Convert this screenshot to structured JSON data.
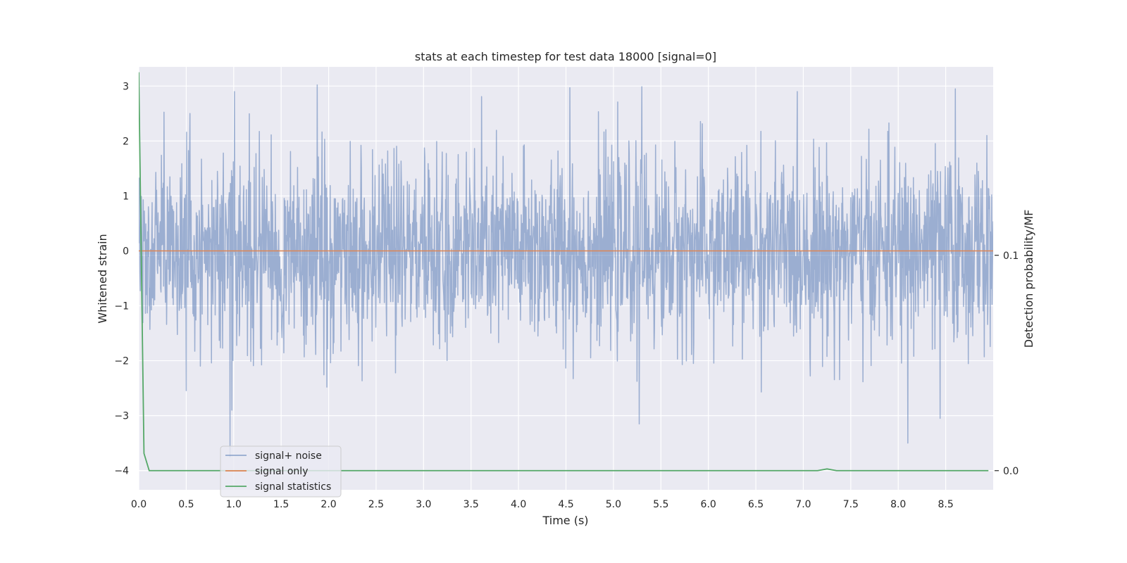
{
  "chart_data": {
    "type": "line",
    "title": "stats at each timestep for test data 18000 [signal=0]",
    "xlabel": "Time (s)",
    "ylabel": "Whitened strain",
    "ylabel_right": "Detection probability/MF",
    "xlim": [
      0,
      9.0
    ],
    "ylim": [
      -4.35,
      3.35
    ],
    "ylim_right": [
      -0.0089,
      0.1875
    ],
    "x_ticks": [
      "0.0",
      "0.5",
      "1.0",
      "1.5",
      "2.0",
      "2.5",
      "3.0",
      "3.5",
      "4.0",
      "4.5",
      "5.0",
      "5.5",
      "6.0",
      "6.5",
      "7.0",
      "7.5",
      "8.0",
      "8.5"
    ],
    "y_ticks": [
      "3",
      "2",
      "1",
      "0",
      "−1",
      "−2",
      "−3",
      "−4"
    ],
    "y_ticks_right": [
      "0.1",
      "0.0"
    ],
    "grid": true,
    "legend_position": "lower-left",
    "colors": {
      "background": "#eaeaf2",
      "grid": "#ffffff",
      "noise": "#4c72b0",
      "signal_only": "#dd8452",
      "statistics": "#55a868"
    },
    "series": [
      {
        "name": "signal+ noise",
        "axis": "left",
        "description_type": "noise",
        "sample_count": 2304,
        "x_range": [
          0,
          9.0
        ],
        "band_typical": [
          -1.5,
          1.6
        ],
        "peaks": [
          {
            "x": 0.96,
            "y": -3.75
          },
          {
            "x": 1.88,
            "y": 3.02
          },
          {
            "x": 4.54,
            "y": 2.97
          },
          {
            "x": 5.3,
            "y": 2.99
          },
          {
            "x": 5.27,
            "y": -3.15
          },
          {
            "x": 8.6,
            "y": 2.95
          },
          {
            "x": 8.1,
            "y": -3.5
          },
          {
            "x": 8.44,
            "y": -3.05
          }
        ]
      },
      {
        "name": "signal only",
        "axis": "left",
        "x": [
          0,
          9.0
        ],
        "y": [
          0,
          0
        ]
      },
      {
        "name": "signal statistics",
        "axis": "right",
        "x": [
          0,
          0.055,
          0.11,
          1.0,
          2.0,
          3.0,
          4.0,
          5.0,
          6.0,
          7.0,
          7.15,
          7.25,
          7.35,
          8.0,
          8.95
        ],
        "y": [
          0.185,
          0.008,
          0.0,
          0.0,
          0.0,
          0.0,
          0.0,
          0.0,
          0.0,
          0.0,
          0.0,
          0.0008,
          0.0,
          0.0,
          0.0
        ]
      }
    ]
  }
}
